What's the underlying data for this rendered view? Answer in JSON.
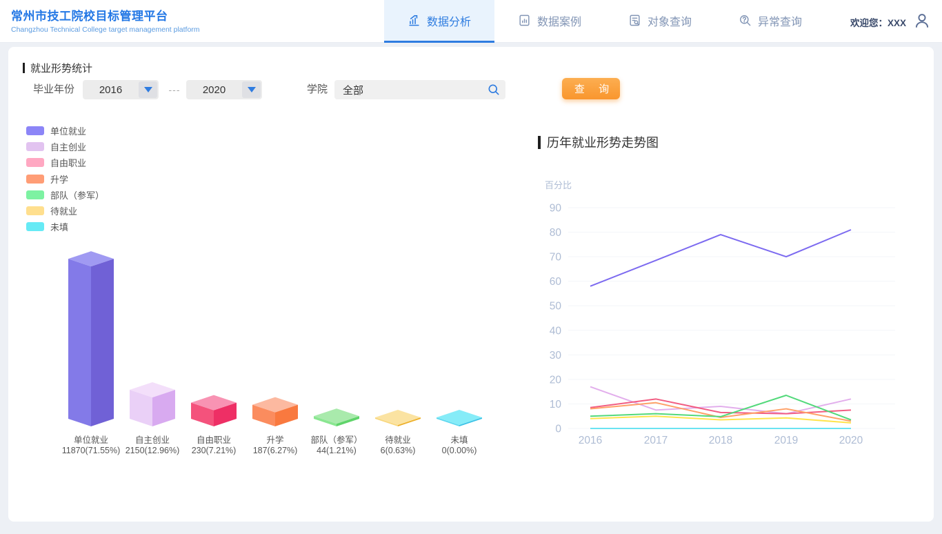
{
  "header": {
    "title": "常州市技工院校目标管理平台",
    "subtitle": "Changzhou Technical College target management platform",
    "tabs": [
      {
        "name": "tab-data-analysis",
        "label": "数据分析",
        "icon": "chart-rise-icon",
        "active": true
      },
      {
        "name": "tab-data-cases",
        "label": "数据案例",
        "icon": "document-chart-icon",
        "active": false
      },
      {
        "name": "tab-object-query",
        "label": "对象查询",
        "icon": "document-search-icon",
        "active": false
      },
      {
        "name": "tab-exception-query",
        "label": "异常查询",
        "icon": "question-search-icon",
        "active": false
      }
    ],
    "welcome": "欢迎您：XXX"
  },
  "filters": {
    "section_title": "就业形势统计",
    "year_label": "毕业年份",
    "year_from": "2016",
    "year_to": "2020",
    "separator": "---",
    "college_label": "学院",
    "college_value": "全部",
    "query_button": "查 询"
  },
  "colors": {
    "accent_blue": "#2e7ce0",
    "button_orange": "#f9962e",
    "axis_label": "#aebcd4",
    "gridline": "#f3f5f9"
  },
  "chart_data": [
    {
      "type": "bar",
      "title": "就业形势统计",
      "style": "3d-bars",
      "categories": [
        "单位就业",
        "自主创业",
        "自由职业",
        "升学",
        "部队（参军）",
        "待就业",
        "未填"
      ],
      "values": [
        11870,
        2150,
        230,
        187,
        44,
        6,
        0
      ],
      "percents": [
        71.55,
        12.96,
        7.21,
        6.27,
        1.21,
        0.63,
        0.0
      ],
      "value_labels": [
        "11870(71.55%)",
        "2150(12.96%)",
        "230(7.21%)",
        "187(6.27%)",
        "44(1.21%)",
        "6(0.63%)",
        "0(0.00%)"
      ],
      "legend_colors": [
        "#8c85f7",
        "#e2c3f0",
        "#ffa8c2",
        "#ff9d76",
        "#7df2a2",
        "#ffdf8e",
        "#66eaf5"
      ],
      "face_colors": {
        "top": [
          "#a09af2",
          "#f3dffa",
          "#f893b3",
          "#fcb9a0",
          "#a9eaac",
          "#fbe3a2",
          "#86ecf8"
        ],
        "left": [
          "#837ae8",
          "#ead0f7",
          "#f4527c",
          "#fb8c5e",
          "#8ae691",
          "#f8d77d",
          "#5fd8ef"
        ],
        "right": [
          "#7061d6",
          "#d8aaf0",
          "#ee2f65",
          "#f9793f",
          "#5fd46a",
          "#edb02a",
          "#3cc2e6"
        ]
      }
    },
    {
      "type": "line",
      "title": "历年就业形势走势图",
      "ylabel": "百分比",
      "x": [
        "2016",
        "2017",
        "2018",
        "2019",
        "2020"
      ],
      "ylim": [
        0,
        90
      ],
      "ytick_step": 10,
      "grid": true,
      "legend_position": "none",
      "series": [
        {
          "name": "单位就业",
          "color": "#7c6af0",
          "values": [
            58,
            68.5,
            79,
            70,
            81
          ]
        },
        {
          "name": "自主创业",
          "color": "#e2aeec",
          "values": [
            17,
            7.5,
            9,
            6,
            12
          ]
        },
        {
          "name": "自由职业",
          "color": "#f25d82",
          "values": [
            8.5,
            12,
            6.5,
            6,
            7.5
          ]
        },
        {
          "name": "升学",
          "color": "#ffa168",
          "values": [
            8,
            10.5,
            4.5,
            8,
            3
          ]
        },
        {
          "name": "部队（参军）",
          "color": "#52d97a",
          "values": [
            5,
            6,
            4.8,
            13.5,
            3.5
          ]
        },
        {
          "name": "待就业",
          "color": "#ffe44d",
          "values": [
            4,
            5,
            3.5,
            4.3,
            2.3
          ]
        },
        {
          "name": "未填",
          "color": "#6ae4f2",
          "values": [
            0,
            0,
            0,
            0,
            0
          ]
        }
      ]
    }
  ]
}
